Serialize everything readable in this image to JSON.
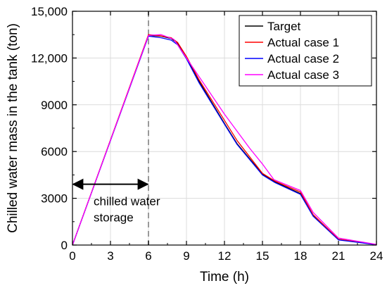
{
  "chart_data": {
    "type": "line",
    "xlabel": "Time (h)",
    "ylabel": "Chilled water mass in the tank (ton)",
    "xlim": [
      0,
      24
    ],
    "ylim": [
      0,
      15000
    ],
    "xticks": [
      0,
      3,
      6,
      9,
      12,
      15,
      18,
      21,
      24
    ],
    "yticks": [
      0,
      3000,
      6000,
      9000,
      12000,
      15000
    ],
    "xtick_labels": [
      "0",
      "3",
      "6",
      "9",
      "12",
      "15",
      "18",
      "21",
      "24"
    ],
    "ytick_labels": [
      "0",
      "3000",
      "6000",
      "9000",
      "12,000",
      "15,000"
    ],
    "grid": true,
    "legend_position": "top-right",
    "series": [
      {
        "name": "Target",
        "color": "#000000",
        "x": [
          0,
          6,
          7,
          7.8,
          8.3,
          9,
          10,
          12,
          13,
          15,
          16,
          18,
          19,
          21,
          24
        ],
        "y": [
          0,
          13450,
          13400,
          13250,
          12950,
          12000,
          10500,
          7800,
          6500,
          4550,
          4050,
          3300,
          1900,
          350,
          30
        ]
      },
      {
        "name": "Actual case 1",
        "color": "#ff0000",
        "x": [
          0,
          6,
          7,
          7.8,
          8.3,
          9,
          10,
          12,
          13,
          15,
          16,
          18,
          19,
          21,
          24
        ],
        "y": [
          0,
          13500,
          13420,
          13300,
          13000,
          12100,
          10600,
          8000,
          6700,
          4600,
          4100,
          3400,
          1950,
          380,
          40
        ]
      },
      {
        "name": "Actual case 2",
        "color": "#0000ff",
        "x": [
          0,
          6,
          7,
          7.8,
          8.3,
          9,
          10,
          12,
          13,
          15,
          16,
          18,
          19,
          21,
          24
        ],
        "y": [
          0,
          13400,
          13300,
          13150,
          12850,
          11950,
          10400,
          7750,
          6450,
          4500,
          4000,
          3250,
          1850,
          330,
          20
        ]
      },
      {
        "name": "Actual case 3",
        "color": "#ff00ff",
        "x": [
          0,
          6,
          7,
          8,
          9,
          10,
          12,
          14,
          15,
          15.9,
          18,
          19,
          21,
          24
        ],
        "y": [
          0,
          13450,
          13500,
          13200,
          12000,
          10800,
          8400,
          6200,
          5200,
          4200,
          3500,
          2100,
          450,
          40
        ]
      }
    ],
    "annotations": [
      {
        "text_lines": [
          "chilled water",
          "storage"
        ],
        "x_range": [
          0,
          6
        ],
        "y": 3900
      }
    ],
    "reference_line": {
      "x": 6,
      "style": "dashed",
      "color": "#9a9a9a"
    }
  }
}
